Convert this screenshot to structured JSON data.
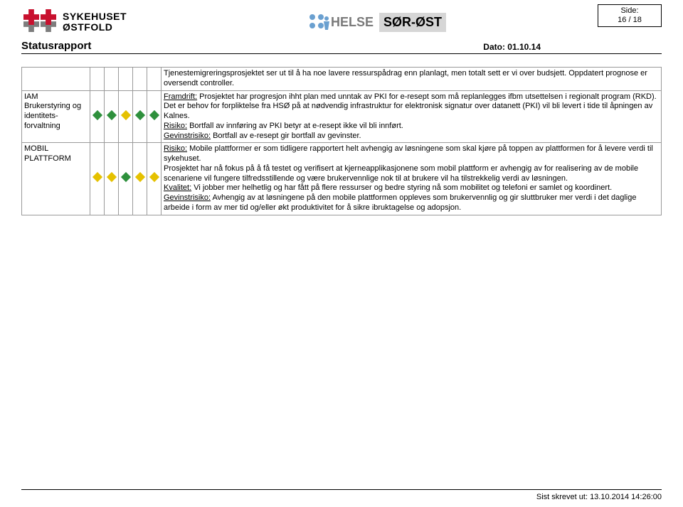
{
  "brand": {
    "line1": "SYKEHUSET",
    "line2": "ØSTFOLD"
  },
  "helse": {
    "left": "HELSE",
    "right": "SØR-ØST"
  },
  "icon_dots": {
    "color": "#6aa0d0",
    "arrow_color": "#6aa0d0"
  },
  "page_box": {
    "side_label": "Side:",
    "page": "16 / 18"
  },
  "title": "Statusrapport",
  "date_label": "Dato: 01.10.14",
  "diamond_colors": {
    "green": "#2e903c",
    "yellow": "#e5c100"
  },
  "rows": [
    {
      "label": "",
      "diamonds": null,
      "body_html": "Tjenestemigreringsprosjektet ser ut til å ha noe lavere ressurspådrag enn planlagt, men totalt sett er vi over budsjett. Oppdatert prognose er oversendt controller."
    },
    {
      "label": "IAM\nBrukerstyring og identitets-forvaltning",
      "diamonds": [
        "green",
        "green",
        "yellow",
        "green",
        "green"
      ],
      "body_html": "<span class=\"u\">Framdrift:</span> Prosjektet har progresjon ihht plan med unntak av PKI for e-resept som må replanlegges ifbm utsettelsen i regionalt program (RKD). Det er behov for forpliktelse fra HSØ på at nødvendig infrastruktur for elektronisk signatur over datanett (PKI) vil bli levert i tide til åpningen av Kalnes.<br><span class=\"u\">Risiko:</span> Bortfall av innføring av PKI betyr at e-resept ikke vil bli innført.<br><span class=\"u\">Gevinstrisiko:</span> Bortfall av e-resept gir bortfall av gevinster."
    },
    {
      "label": "MOBIL PLATTFORM",
      "diamonds": [
        "yellow",
        "yellow",
        "green",
        "yellow",
        "yellow"
      ],
      "body_html": "<span class=\"u\">Risiko:</span> Mobile plattformer er som tidligere rapportert helt avhengig av løsningene som skal kjøre på toppen av plattformen for å levere verdi til sykehuset.<br>Prosjektet har nå fokus på å få testet og verifisert at kjerneapplikasjonene som mobil plattform er avhengig av for realisering av de mobile scenariene vil fungere tilfredsstillende og være brukervennlige nok til at brukere vil ha tilstrekkelig verdi av løsningen.<br><span class=\"u\">Kvalitet:</span> Vi jobber mer helhetlig og har fått på flere ressurser og bedre styring nå som mobilitet og telefoni er samlet og koordinert.<br><span class=\"u\">Gevinstrisiko:</span> Avhengig av at løsningene på den mobile plattformen oppleves som brukervennlig og gir sluttbruker mer verdi i det daglige arbeide i form av mer tid og/eller økt produktivitet for å sikre ibruktagelse og adopsjon."
    }
  ],
  "footer": "Sist skrevet ut: 13.10.2014 14:26:00",
  "logo_colors": {
    "red": "#c8102e",
    "gray": "#7d7d7d"
  }
}
